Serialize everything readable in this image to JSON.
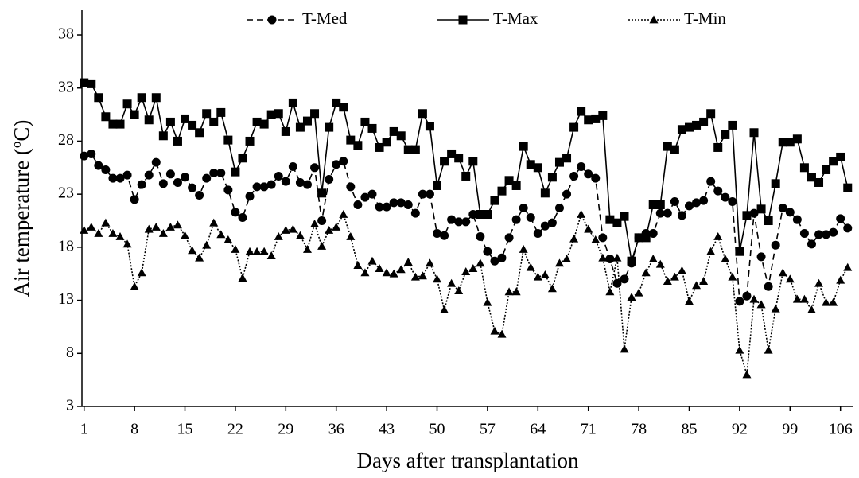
{
  "chart_data": {
    "type": "line",
    "x_label": "Days after transplantation",
    "y_label": "Air temperature  (ºC)",
    "x": [
      1,
      2,
      3,
      4,
      5,
      6,
      7,
      8,
      9,
      10,
      11,
      12,
      13,
      14,
      15,
      16,
      17,
      18,
      19,
      20,
      21,
      22,
      23,
      24,
      25,
      26,
      27,
      28,
      29,
      30,
      31,
      32,
      33,
      34,
      35,
      36,
      37,
      38,
      39,
      40,
      41,
      42,
      43,
      44,
      45,
      46,
      47,
      48,
      49,
      50,
      51,
      52,
      53,
      54,
      55,
      56,
      57,
      58,
      59,
      60,
      61,
      62,
      63,
      64,
      65,
      66,
      67,
      68,
      69,
      70,
      71,
      72,
      73,
      74,
      75,
      76,
      77,
      78,
      79,
      80,
      81,
      82,
      83,
      84,
      85,
      86,
      87,
      88,
      89,
      90,
      91,
      92,
      93,
      94,
      95,
      96,
      97,
      98,
      99,
      100,
      101,
      102,
      103,
      104,
      105,
      106,
      107
    ],
    "xlim": [
      0.7,
      107.8
    ],
    "xticks": [
      1,
      8,
      15,
      22,
      29,
      36,
      43,
      50,
      57,
      64,
      71,
      78,
      85,
      92,
      99,
      106
    ],
    "ylim": [
      3,
      40.4
    ],
    "yticks": [
      3,
      8,
      13,
      18,
      23,
      28,
      33,
      38
    ],
    "grid": false,
    "legend": "top",
    "series": [
      {
        "name": "T-Med",
        "color": "#000000",
        "dash": "dashed",
        "marker": "circle",
        "values": [
          26.6,
          26.8,
          25.7,
          25.3,
          24.5,
          24.5,
          24.8,
          22.5,
          23.9,
          24.8,
          26.0,
          24.0,
          24.9,
          24.1,
          24.6,
          23.6,
          22.9,
          24.5,
          25.0,
          25.0,
          23.4,
          21.3,
          20.8,
          22.8,
          23.7,
          23.7,
          23.9,
          24.7,
          24.2,
          25.6,
          24.1,
          23.9,
          25.5,
          20.5,
          24.4,
          25.8,
          26.1,
          23.7,
          22.0,
          22.7,
          23.0,
          21.8,
          21.8,
          22.2,
          22.2,
          22.0,
          21.2,
          23.0,
          23.0,
          19.3,
          19.1,
          20.6,
          20.4,
          20.4,
          21.1,
          19.0,
          17.6,
          16.7,
          17.0,
          18.9,
          20.6,
          21.7,
          20.8,
          19.3,
          20.0,
          20.3,
          21.7,
          23.0,
          24.7,
          25.6,
          24.9,
          24.5,
          18.9,
          16.9,
          14.6,
          15.0,
          16.5,
          18.9,
          19.3,
          19.3,
          21.2,
          21.2,
          22.3,
          21.0,
          21.9,
          22.2,
          22.4,
          24.2,
          23.3,
          22.7,
          22.3,
          12.9,
          13.4,
          21.2,
          17.1,
          14.3,
          18.2,
          21.7,
          21.3,
          20.6,
          19.3,
          18.3,
          19.2,
          19.2,
          19.4,
          20.7,
          19.8
        ]
      },
      {
        "name": "T-Max",
        "color": "#000000",
        "dash": "solid",
        "marker": "square",
        "values": [
          33.5,
          33.4,
          32.1,
          30.3,
          29.6,
          29.6,
          31.5,
          30.5,
          32.1,
          30.0,
          32.1,
          28.5,
          29.8,
          28.0,
          30.1,
          29.5,
          28.8,
          30.6,
          29.8,
          30.7,
          28.1,
          25.1,
          26.4,
          28.0,
          29.8,
          29.6,
          30.5,
          30.6,
          28.9,
          31.6,
          29.3,
          29.9,
          30.6,
          23.1,
          29.3,
          31.6,
          31.2,
          28.1,
          27.6,
          29.8,
          29.2,
          27.4,
          27.9,
          28.9,
          28.5,
          27.2,
          27.2,
          30.6,
          29.4,
          23.8,
          26.1,
          26.8,
          26.4,
          24.7,
          26.1,
          21.1,
          21.1,
          22.4,
          23.3,
          24.3,
          23.8,
          27.5,
          25.8,
          25.5,
          23.1,
          24.6,
          26.0,
          26.4,
          29.3,
          30.8,
          30.0,
          30.1,
          30.4,
          20.6,
          20.3,
          20.9,
          16.7,
          18.9,
          18.9,
          22.0,
          22.0,
          27.5,
          27.2,
          29.1,
          29.3,
          29.5,
          29.8,
          30.6,
          27.4,
          28.6,
          29.5,
          17.6,
          21.0,
          28.8,
          21.6,
          20.5,
          24.0,
          27.9,
          27.9,
          28.2,
          25.5,
          24.6,
          24.1,
          25.3,
          26.1,
          26.5,
          23.6
        ]
      },
      {
        "name": "T-Min",
        "color": "#000000",
        "dash": "dotted",
        "marker": "triangle",
        "values": [
          19.6,
          19.9,
          19.3,
          20.3,
          19.3,
          19.0,
          18.3,
          14.3,
          15.6,
          19.7,
          19.9,
          19.3,
          19.9,
          20.1,
          19.1,
          17.7,
          17.0,
          18.2,
          20.3,
          19.2,
          18.7,
          17.8,
          15.1,
          17.6,
          17.6,
          17.6,
          17.2,
          19.0,
          19.6,
          19.7,
          19.1,
          17.8,
          20.2,
          18.1,
          19.6,
          19.9,
          21.1,
          19.0,
          16.3,
          15.6,
          16.7,
          16.0,
          15.6,
          15.5,
          15.9,
          16.6,
          15.2,
          15.3,
          16.5,
          15.0,
          12.1,
          14.6,
          13.9,
          15.7,
          16.0,
          16.5,
          12.8,
          10.1,
          9.8,
          13.8,
          13.8,
          17.8,
          16.1,
          15.2,
          15.4,
          14.1,
          16.5,
          16.9,
          18.8,
          21.1,
          19.7,
          18.7,
          17.0,
          13.8,
          17.0,
          8.4,
          13.3,
          13.7,
          15.6,
          16.9,
          16.4,
          14.8,
          15.2,
          15.8,
          12.9,
          14.4,
          14.8,
          17.6,
          19.0,
          16.9,
          15.2,
          8.3,
          6.0,
          13.1,
          12.6,
          8.3,
          12.2,
          15.6,
          15.0,
          13.1,
          13.1,
          12.1,
          14.6,
          12.8,
          12.8,
          14.9,
          16.1
        ]
      }
    ]
  }
}
